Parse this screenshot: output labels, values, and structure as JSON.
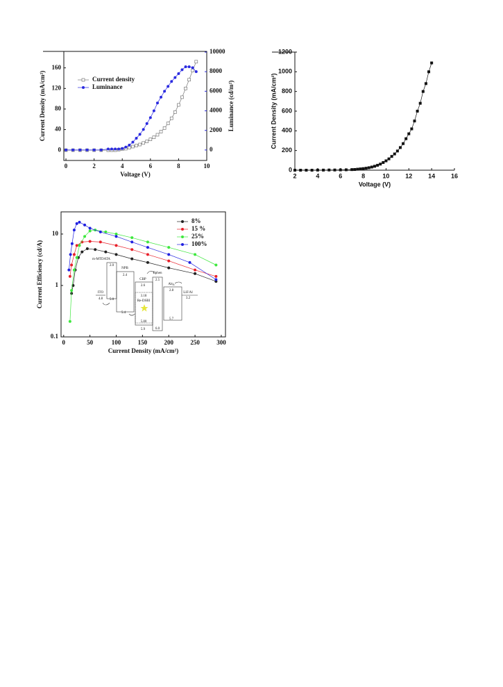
{
  "chart_data": [
    {
      "type": "line",
      "xlabel": "Voltage (V)",
      "ylabel": "Current Density (mA/cm²)",
      "y2label": "Luminance (cd/m²)",
      "x": [
        0,
        0.5,
        1,
        1.5,
        2,
        2.5,
        3,
        3.25,
        3.5,
        3.75,
        4,
        4.25,
        4.5,
        4.75,
        5,
        5.25,
        5.5,
        5.75,
        6,
        6.25,
        6.5,
        6.75,
        7,
        7.25,
        7.5,
        7.75,
        8,
        8.25,
        8.5,
        8.75,
        9,
        9.25
      ],
      "series": [
        {
          "name": "Current density",
          "color": "#777777",
          "marker": "open-square",
          "values": [
            0,
            0,
            0,
            0,
            0,
            0,
            0,
            0,
            0,
            1,
            2,
            3,
            5,
            7,
            9,
            11,
            14,
            17,
            21,
            25,
            30,
            36,
            43,
            52,
            62,
            74,
            88,
            103,
            120,
            137,
            155,
            172
          ]
        },
        {
          "name": "Luminance",
          "color": "#2a2ae0",
          "marker": "circle",
          "axis": "y2",
          "values": [
            0,
            0,
            0,
            0,
            0,
            0,
            100,
            100,
            100,
            100,
            150,
            300,
            500,
            800,
            1200,
            1600,
            2100,
            2700,
            3300,
            4000,
            4800,
            5400,
            6000,
            6500,
            7000,
            7400,
            7800,
            8200,
            8500,
            8500,
            8400,
            8000
          ]
        }
      ],
      "xlim": [
        -0.15,
        10
      ],
      "xticks": [
        0,
        2,
        4,
        6,
        8,
        10
      ],
      "ylim": [
        -20,
        192
      ],
      "yticks": [
        0,
        40,
        80,
        120,
        160
      ],
      "y2lim": [
        -1070,
        10070
      ],
      "y2ticks": [
        0,
        2000,
        4000,
        6000,
        8000,
        10000
      ],
      "legend": "upper left"
    },
    {
      "type": "line",
      "xlabel": "Voltage (V)",
      "ylabel": "Current Density (mA/cm²)",
      "x": [
        2,
        2.5,
        3,
        3.5,
        4,
        4.5,
        5,
        5.5,
        6,
        6.5,
        7,
        7.25,
        7.5,
        7.75,
        8,
        8.25,
        8.5,
        8.75,
        9,
        9.25,
        9.5,
        9.75,
        10,
        10.25,
        10.5,
        10.75,
        11,
        11.25,
        11.5,
        11.75,
        12,
        12.25,
        12.5,
        12.75,
        13,
        13.25,
        13.5,
        13.75,
        14
      ],
      "values": [
        0,
        0,
        0,
        0,
        1,
        1,
        2,
        2,
        3,
        4,
        6,
        7,
        10,
        13,
        16,
        20,
        25,
        32,
        40,
        50,
        62,
        78,
        95,
        115,
        140,
        165,
        195,
        230,
        270,
        320,
        370,
        420,
        500,
        600,
        680,
        800,
        880,
        1000,
        1090
      ],
      "color": "#111111",
      "marker": "square",
      "xlim": [
        2,
        16
      ],
      "xticks": [
        2,
        4,
        6,
        8,
        10,
        12,
        14,
        16
      ],
      "ylim": [
        0,
        1200
      ],
      "yticks": [
        0,
        200,
        400,
        600,
        800,
        1000,
        1200
      ]
    },
    {
      "type": "line",
      "log_y": true,
      "xlabel": "Current Density (mA/cm²)",
      "ylabel": "Current Efficiency (cd/A)",
      "series": [
        {
          "name": "8%",
          "color": "#222222",
          "marker": "circle",
          "x": [
            15,
            18,
            22,
            28,
            35,
            45,
            60,
            80,
            100,
            130,
            160,
            200,
            250,
            290
          ],
          "values": [
            0.7,
            1,
            2,
            3.5,
            4.5,
            5.2,
            5,
            4.5,
            4,
            3.3,
            2.8,
            2.2,
            1.7,
            1.2
          ]
        },
        {
          "name": "15 %",
          "color": "#e8202a",
          "marker": "circle",
          "x": [
            12,
            15,
            20,
            25,
            35,
            50,
            70,
            100,
            130,
            160,
            200,
            250,
            290
          ],
          "values": [
            1.5,
            2.5,
            4,
            6,
            7,
            7.2,
            7,
            6,
            5,
            4,
            3,
            2,
            1.5
          ]
        },
        {
          "name": "25%",
          "color": "#3ee83e",
          "marker": "circle",
          "x": [
            12,
            15,
            20,
            25,
            30,
            40,
            50,
            60,
            80,
            100,
            130,
            160,
            200,
            250,
            290
          ],
          "values": [
            0.2,
            0.8,
            2,
            3.5,
            6,
            9,
            11.5,
            12,
            11,
            10,
            8.5,
            7,
            5.5,
            4,
            2.5
          ]
        },
        {
          "name": "100%",
          "color": "#2020e0",
          "marker": "circle",
          "x": [
            10,
            13,
            16,
            20,
            25,
            30,
            40,
            50,
            70,
            100,
            130,
            160,
            200,
            240,
            290
          ],
          "values": [
            2,
            4,
            6.5,
            12,
            16,
            17,
            15,
            13,
            11,
            9,
            7,
            5.5,
            4,
            2.8,
            1.3
          ]
        }
      ],
      "xlim": [
        -5,
        308
      ],
      "xticks": [
        0,
        50,
        100,
        150,
        200,
        250,
        300
      ],
      "ylim": [
        0.1,
        27
      ],
      "yticks": [
        0.1,
        1,
        10
      ],
      "legend": "upper right",
      "annotations": [
        "m-MTDATA",
        "2.0",
        "NPB",
        "2.4",
        "ITO",
        "4.8",
        "5.0",
        "5.4",
        "CBP",
        "2.6",
        "3.18",
        "Re-DSBI",
        "5.80",
        "5.9",
        "Bphen",
        "2.5",
        "6.0",
        "Alq₃",
        "2.8",
        "5.7",
        "LiF/Al",
        "3.2"
      ]
    }
  ]
}
